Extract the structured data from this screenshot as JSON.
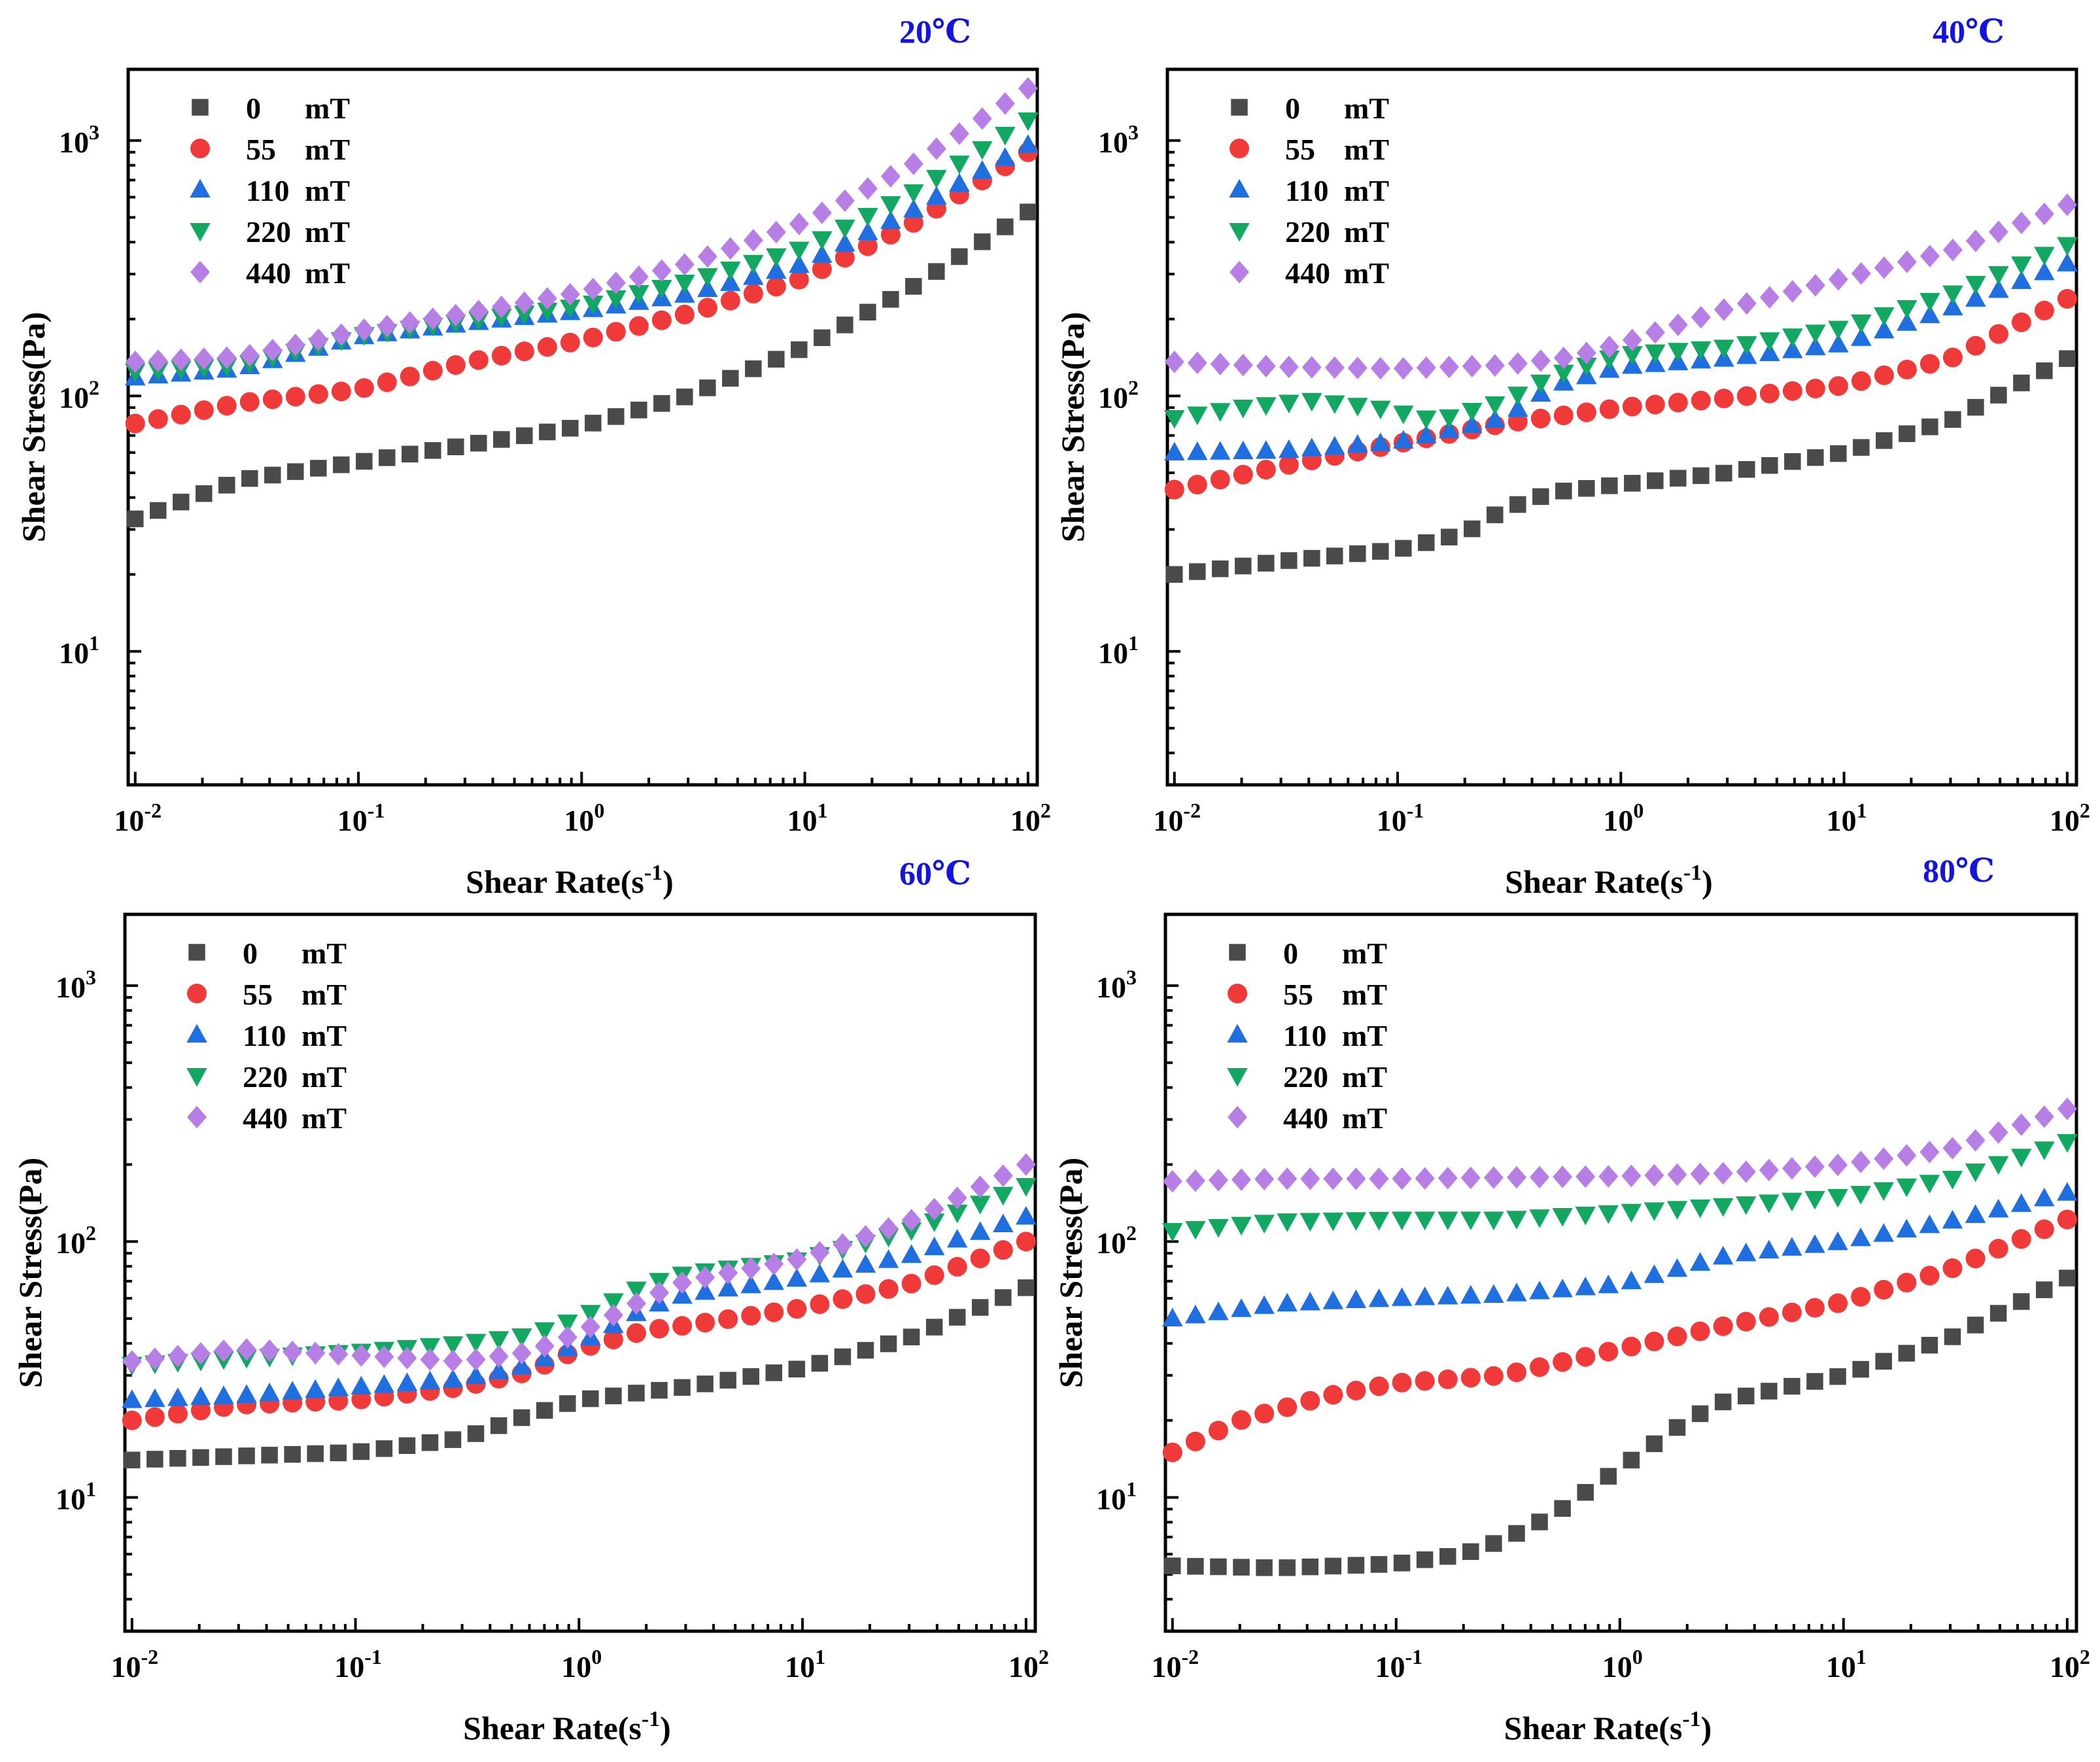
{
  "figure": {
    "shared": {
      "xlabel": "Shear Rate(s",
      "xlabel_sup": "-1",
      "xlabel_end": ")",
      "ylabel": "Shear Stress(Pa)",
      "x_ticks": [
        {
          "base": "10",
          "exp": "-2",
          "value": 0.01
        },
        {
          "base": "10",
          "exp": "-1",
          "value": 0.1
        },
        {
          "base": "10",
          "exp": "0",
          "value": 1
        },
        {
          "base": "10",
          "exp": "1",
          "value": 10
        },
        {
          "base": "10",
          "exp": "2",
          "value": 100
        }
      ],
      "y_ticks": [
        {
          "base": "10",
          "exp": "1",
          "value": 10
        },
        {
          "base": "10",
          "exp": "2",
          "value": 100
        },
        {
          "base": "10",
          "exp": "3",
          "value": 1000
        }
      ],
      "xlim": [
        0.0093,
        110
      ],
      "ylim": [
        3,
        1900
      ],
      "legend": [
        {
          "num": "0",
          "unit": "mT",
          "marker": "square",
          "color": "#4a4a4a"
        },
        {
          "num": "55",
          "unit": "mT",
          "marker": "circle",
          "color": "#f03a3a"
        },
        {
          "num": "110",
          "unit": "mT",
          "marker": "triangle-up",
          "color": "#1f6fe0"
        },
        {
          "num": "220",
          "unit": "mT",
          "marker": "triangle-down",
          "color": "#13a862"
        },
        {
          "num": "440",
          "unit": "mT",
          "marker": "diamond",
          "color": "#b77ee6"
        }
      ],
      "legend_position": "top-left",
      "title_color": "#1414e0"
    }
  },
  "chart_data": [
    {
      "type": "scatter",
      "scale": "log-log",
      "title": "20℃",
      "xlabel": "Shear Rate(s-1)",
      "ylabel": "Shear Stress(Pa)",
      "xlim": [
        0.0093,
        110
      ],
      "ylim": [
        3,
        1900
      ],
      "series": [
        {
          "name": "0 mT",
          "anchors": [
            [
              0.01,
              33
            ],
            [
              0.03,
              47
            ],
            [
              0.1,
              55
            ],
            [
              0.3,
              64
            ],
            [
              1,
              76
            ],
            [
              3,
              100
            ],
            [
              10,
              155
            ],
            [
              30,
              265
            ],
            [
              100,
              525
            ]
          ]
        },
        {
          "name": "55 mT",
          "anchors": [
            [
              0.01,
              78
            ],
            [
              0.03,
              94
            ],
            [
              0.1,
              106
            ],
            [
              0.3,
              135
            ],
            [
              1,
              165
            ],
            [
              3,
              210
            ],
            [
              10,
              290
            ],
            [
              30,
              470
            ],
            [
              100,
              900
            ]
          ]
        },
        {
          "name": "110 mT",
          "anchors": [
            [
              0.01,
              118
            ],
            [
              0.03,
              128
            ],
            [
              0.1,
              170
            ],
            [
              0.3,
              192
            ],
            [
              1,
              215
            ],
            [
              3,
              250
            ],
            [
              10,
              330
            ],
            [
              30,
              530
            ],
            [
              100,
              960
            ]
          ]
        },
        {
          "name": "220 mT",
          "anchors": [
            [
              0.01,
              125
            ],
            [
              0.03,
              132
            ],
            [
              0.1,
              172
            ],
            [
              0.3,
              196
            ],
            [
              1,
              225
            ],
            [
              3,
              280
            ],
            [
              10,
              380
            ],
            [
              30,
              620
            ],
            [
              100,
              1200
            ]
          ]
        },
        {
          "name": "440 mT",
          "anchors": [
            [
              0.01,
              136
            ],
            [
              0.03,
              142
            ],
            [
              0.1,
              180
            ],
            [
              0.3,
              210
            ],
            [
              1,
              255
            ],
            [
              3,
              330
            ],
            [
              10,
              480
            ],
            [
              30,
              800
            ],
            [
              100,
              1600
            ]
          ]
        }
      ]
    },
    {
      "type": "scatter",
      "scale": "log-log",
      "title": "40℃",
      "xlabel": "Shear Rate(s-1)",
      "ylabel": "Shear Stress(Pa)",
      "xlim": [
        0.0093,
        110
      ],
      "ylim": [
        3,
        1900
      ],
      "series": [
        {
          "name": "0 mT",
          "anchors": [
            [
              0.01,
              20
            ],
            [
              0.03,
              22.5
            ],
            [
              0.1,
              25
            ],
            [
              0.2,
              29
            ],
            [
              0.3,
              36
            ],
            [
              0.5,
              42
            ],
            [
              1,
              45
            ],
            [
              3,
              50
            ],
            [
              10,
              60
            ],
            [
              30,
              80
            ],
            [
              100,
              140
            ]
          ]
        },
        {
          "name": "55 mT",
          "anchors": [
            [
              0.01,
              43
            ],
            [
              0.03,
              53
            ],
            [
              0.1,
              65
            ],
            [
              0.3,
              78
            ],
            [
              1,
              90
            ],
            [
              3,
              98
            ],
            [
              10,
              110
            ],
            [
              30,
              140
            ],
            [
              100,
              240
            ]
          ]
        },
        {
          "name": "110 mT",
          "anchors": [
            [
              0.01,
              60
            ],
            [
              0.03,
              61
            ],
            [
              0.1,
              66
            ],
            [
              0.3,
              82
            ],
            [
              0.5,
              110
            ],
            [
              1,
              130
            ],
            [
              3,
              140
            ],
            [
              10,
              160
            ],
            [
              30,
              220
            ],
            [
              100,
              330
            ]
          ]
        },
        {
          "name": "220 mT",
          "anchors": [
            [
              0.01,
              82
            ],
            [
              0.02,
              90
            ],
            [
              0.04,
              96
            ],
            [
              0.08,
              90
            ],
            [
              0.15,
              80
            ],
            [
              0.3,
              95
            ],
            [
              0.5,
              120
            ],
            [
              1,
              145
            ],
            [
              3,
              155
            ],
            [
              10,
              185
            ],
            [
              30,
              250
            ],
            [
              100,
              390
            ]
          ]
        },
        {
          "name": "440 mT",
          "anchors": [
            [
              0.01,
              136
            ],
            [
              0.03,
              130
            ],
            [
              0.1,
              128
            ],
            [
              0.3,
              132
            ],
            [
              0.6,
              142
            ],
            [
              1,
              160
            ],
            [
              3,
              220
            ],
            [
              10,
              290
            ],
            [
              30,
              370
            ],
            [
              100,
              560
            ]
          ]
        }
      ]
    },
    {
      "type": "scatter",
      "scale": "log-log",
      "title": "60℃",
      "xlabel": "Shear Rate(s-1)",
      "ylabel": "Shear Stress(Pa)",
      "xlim": [
        0.0093,
        110
      ],
      "ylim": [
        3,
        1900
      ],
      "series": [
        {
          "name": "0 mT",
          "anchors": [
            [
              0.01,
              14
            ],
            [
              0.03,
              14.5
            ],
            [
              0.1,
              15
            ],
            [
              0.3,
              17
            ],
            [
              0.6,
              21
            ],
            [
              1,
              24
            ],
            [
              3,
              27
            ],
            [
              10,
              32
            ],
            [
              30,
              42
            ],
            [
              100,
              66
            ]
          ]
        },
        {
          "name": "55 mT",
          "anchors": [
            [
              0.01,
              20
            ],
            [
              0.03,
              23
            ],
            [
              0.1,
              24
            ],
            [
              0.3,
              27
            ],
            [
              0.6,
              31
            ],
            [
              1,
              38
            ],
            [
              2,
              45
            ],
            [
              3,
              47
            ],
            [
              10,
              55
            ],
            [
              30,
              68
            ],
            [
              100,
              100
            ]
          ]
        },
        {
          "name": "110 mT",
          "anchors": [
            [
              0.01,
              24
            ],
            [
              0.03,
              25
            ],
            [
              0.1,
              27
            ],
            [
              0.3,
              29
            ],
            [
              0.6,
              33
            ],
            [
              1,
              40
            ],
            [
              2,
              55
            ],
            [
              3,
              62
            ],
            [
              10,
              72
            ],
            [
              30,
              88
            ],
            [
              100,
              125
            ]
          ]
        },
        {
          "name": "220 mT",
          "anchors": [
            [
              0.01,
              33
            ],
            [
              0.03,
              35
            ],
            [
              0.1,
              37
            ],
            [
              0.3,
              40
            ],
            [
              0.6,
              43
            ],
            [
              1,
              50
            ],
            [
              2,
              68
            ],
            [
              3,
              75
            ],
            [
              10,
              85
            ],
            [
              30,
              110
            ],
            [
              100,
              165
            ]
          ]
        },
        {
          "name": "440 mT",
          "anchors": [
            [
              0.01,
              34
            ],
            [
              0.03,
              38
            ],
            [
              0.1,
              36
            ],
            [
              0.3,
              34
            ],
            [
              0.6,
              37
            ],
            [
              1,
              44
            ],
            [
              2,
              60
            ],
            [
              3,
              70
            ],
            [
              10,
              86
            ],
            [
              30,
              120
            ],
            [
              100,
              200
            ]
          ]
        }
      ]
    },
    {
      "type": "scatter",
      "scale": "log-log",
      "title": "80℃",
      "xlabel": "Shear Rate(s-1)",
      "ylabel": "Shear Stress(Pa)",
      "xlim": [
        0.0093,
        110
      ],
      "ylim": [
        3,
        1900
      ],
      "series": [
        {
          "name": "0 mT",
          "anchors": [
            [
              0.01,
              5.4
            ],
            [
              0.03,
              5.3
            ],
            [
              0.1,
              5.5
            ],
            [
              0.2,
              6
            ],
            [
              0.3,
              6.8
            ],
            [
              0.5,
              8.5
            ],
            [
              1,
              13
            ],
            [
              2,
              20
            ],
            [
              3,
              24
            ],
            [
              10,
              30
            ],
            [
              30,
              42
            ],
            [
              100,
              72
            ]
          ]
        },
        {
          "name": "55 mT",
          "anchors": [
            [
              0.01,
              15
            ],
            [
              0.02,
              20
            ],
            [
              0.05,
              25
            ],
            [
              0.1,
              28
            ],
            [
              0.3,
              30
            ],
            [
              1,
              38
            ],
            [
              3,
              47
            ],
            [
              10,
              58
            ],
            [
              30,
              78
            ],
            [
              100,
              122
            ]
          ]
        },
        {
          "name": "110 mT",
          "anchors": [
            [
              0.01,
              50
            ],
            [
              0.03,
              57
            ],
            [
              0.1,
              60
            ],
            [
              0.3,
              62
            ],
            [
              1,
              68
            ],
            [
              3,
              88
            ],
            [
              10,
              100
            ],
            [
              30,
              120
            ],
            [
              100,
              155
            ]
          ]
        },
        {
          "name": "220 mT",
          "anchors": [
            [
              0.01,
              110
            ],
            [
              0.03,
              120
            ],
            [
              0.1,
              122
            ],
            [
              0.3,
              122
            ],
            [
              1,
              130
            ],
            [
              3,
              138
            ],
            [
              10,
              150
            ],
            [
              30,
              175
            ],
            [
              100,
              245
            ]
          ]
        },
        {
          "name": "440 mT",
          "anchors": [
            [
              0.01,
              172
            ],
            [
              0.03,
              176
            ],
            [
              0.1,
              176
            ],
            [
              0.3,
              178
            ],
            [
              1,
              180
            ],
            [
              3,
              185
            ],
            [
              10,
              200
            ],
            [
              30,
              230
            ],
            [
              100,
              330
            ]
          ]
        }
      ]
    }
  ]
}
